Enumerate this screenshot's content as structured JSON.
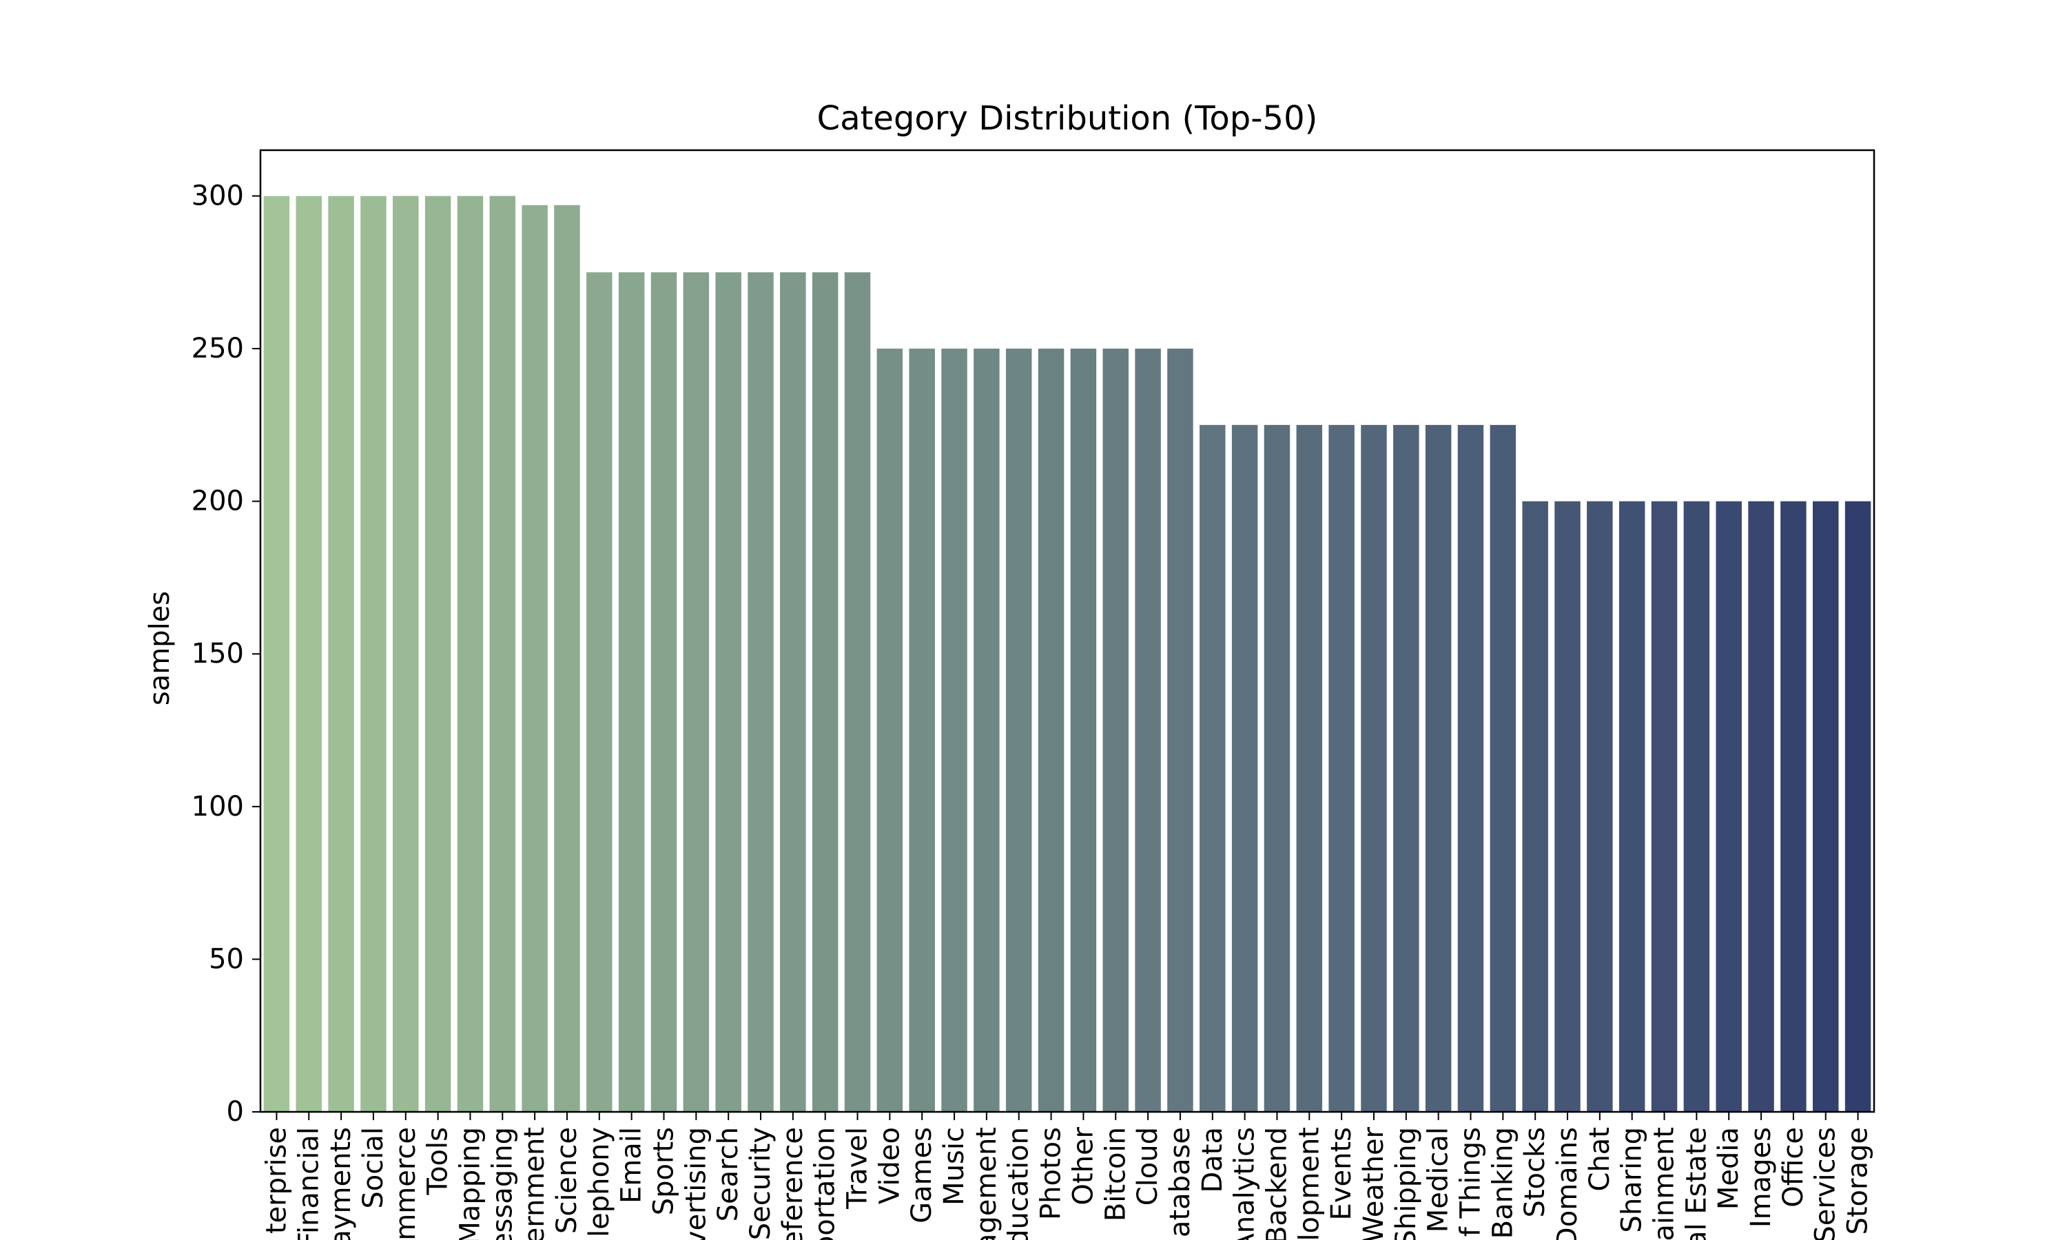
{
  "chart_data": {
    "type": "bar",
    "title": "Category Distribution (Top-50)",
    "xlabel": "",
    "ylabel": "samples",
    "ylim": [
      0,
      315
    ],
    "yticks": [
      0,
      50,
      100,
      150,
      200,
      250,
      300
    ],
    "grid": false,
    "legend": "none",
    "color_start": "#a3c498",
    "color_end": "#313e6d",
    "categories": [
      "terprise",
      "Financial",
      "ayments",
      "Social",
      "mmerce",
      "Tools",
      "Mapping",
      "essaging",
      "ernment",
      "Science",
      "lephony",
      "Email",
      "Sports",
      "vertising",
      "Search",
      "Security",
      "eference",
      "portation",
      "Travel",
      "Video",
      "Games",
      "Music",
      "agement",
      "ducation",
      "Photos",
      "Other",
      "Bitcoin",
      "Cloud",
      "atabase",
      "Data",
      "Analytics",
      "Backend",
      "lopment",
      "Events",
      "Weather",
      "Shipping",
      "Medical",
      "f Things",
      "Banking",
      "Stocks",
      "Domains",
      "Chat",
      "Sharing",
      "ainment",
      "al Estate",
      "Media",
      "Images",
      "Office",
      "Services",
      "Storage"
    ],
    "values": [
      300,
      300,
      300,
      300,
      300,
      300,
      300,
      300,
      297,
      297,
      275,
      275,
      275,
      275,
      275,
      275,
      275,
      275,
      275,
      250,
      250,
      250,
      250,
      250,
      250,
      250,
      250,
      250,
      250,
      225,
      225,
      225,
      225,
      225,
      225,
      225,
      225,
      225,
      225,
      200,
      200,
      200,
      200,
      200,
      200,
      200,
      200,
      200,
      200,
      200
    ]
  }
}
